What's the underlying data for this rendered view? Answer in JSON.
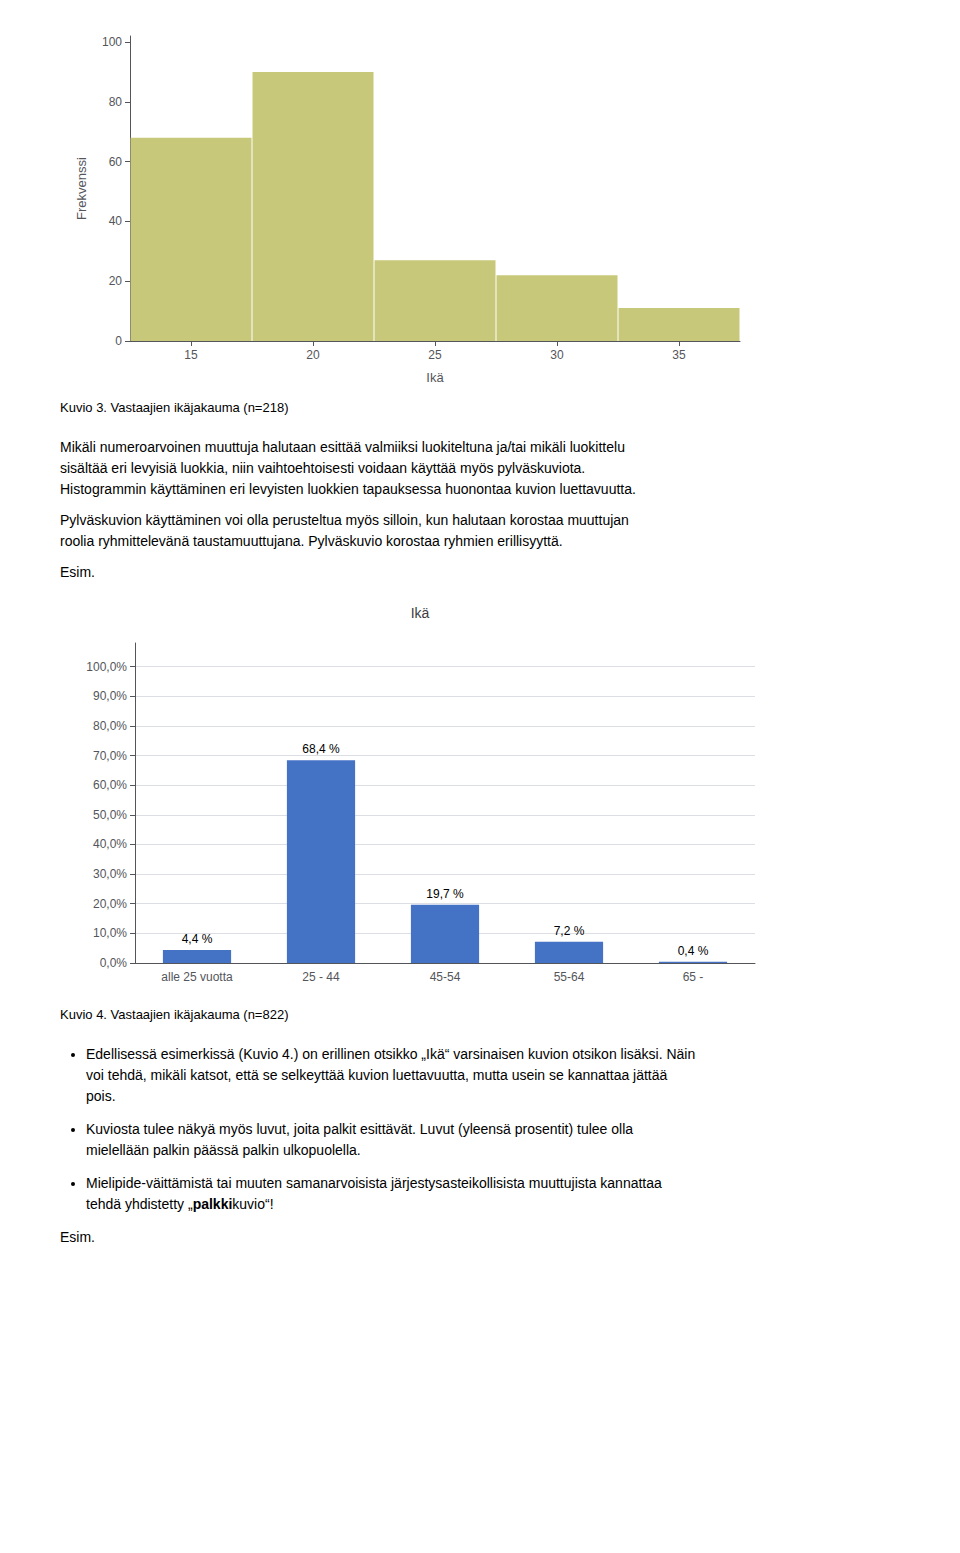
{
  "chart_data": [
    {
      "type": "histogram",
      "xlabel": "Ikä",
      "ylabel": "Frekvenssi",
      "bins": [
        12.5,
        17.5,
        22.5,
        27.5,
        32.5,
        37.5
      ],
      "values": [
        68,
        90,
        27,
        22,
        11
      ],
      "color": "#c8c87a",
      "xlim": [
        12.5,
        37.5
      ],
      "ylim": [
        0,
        102
      ],
      "xticks": [
        15,
        20,
        25,
        30,
        35
      ],
      "yticks": [
        0,
        20,
        40,
        60,
        80,
        100
      ],
      "grid": false,
      "caption": "Kuvio 3. Vastaajien ikäjakauma (n=218)",
      "text_after": {
        "paragraphs": [
          [
            "Mikäli numeroarvoinen muuttuja halutaan esittää valmiiksi luokiteltuna ja/tai mikäli luokittelu",
            "sisältää eri levyisiä luokkia, niin vaihtoehtoisesti voidaan käyttää myös pylväskuviota.",
            "Histogrammin käyttäminen eri levyisten luokkien tapauksessa huonontaa kuvion luettavuutta."
          ],
          [
            "Pylväskuvion käyttäminen voi olla perusteltua myös silloin, kun halutaan korostaa muuttujan",
            "roolia ryhmittelevänä taustamuuttujana. Pylväskuvio korostaa ryhmien erillisyyttä."
          ],
          [
            "Esim."
          ]
        ]
      }
    },
    {
      "type": "bar",
      "title": "Ikä",
      "categories": [
        "alle 25 vuotta",
        "25 - 44",
        "45-54",
        "55-64",
        "65 -"
      ],
      "values": [
        4.4,
        68.4,
        19.7,
        7.2,
        0.4
      ],
      "value_labels": [
        "4,4 %",
        "68,4 %",
        "19,7 %",
        "7,2 %",
        "0,4 %"
      ],
      "data_labels": true,
      "color": "#4472c4",
      "ylim": [
        0,
        108
      ],
      "yticks": [
        {
          "value": 0,
          "label": "0,0%"
        },
        {
          "value": 10,
          "label": "10,0%"
        },
        {
          "value": 20,
          "label": "20,0%"
        },
        {
          "value": 30,
          "label": "30,0%"
        },
        {
          "value": 40,
          "label": "40,0%"
        },
        {
          "value": 50,
          "label": "50,0%"
        },
        {
          "value": 60,
          "label": "60,0%"
        },
        {
          "value": 70,
          "label": "70,0%"
        },
        {
          "value": 80,
          "label": "80,0%"
        },
        {
          "value": 90,
          "label": "90,0%"
        },
        {
          "value": 100,
          "label": "100,0%"
        }
      ],
      "grid": true,
      "caption": "Kuvio 4. Vastaajien ikäjakauma (n=822)",
      "text_after": {
        "bullets": [
          [
            "Edellisessä esimerkissä (Kuvio 4.) on erillinen otsikko „Ikä“ varsinaisen kuvion otsikon lisäksi. Näin",
            "voi tehdä, mikäli katsot, että se selkeyttää kuvion luettavuutta, mutta usein se kannattaa jättää",
            "pois."
          ],
          [
            "Kuviosta tulee näkyä myös luvut, joita palkit esittävät. Luvut (yleensä prosentit) tulee olla",
            "mielellään palkin päässä palkin ulkopuolella."
          ],
          [
            "Mielipide-väittämistä tai muuten samanarvoisista järjestysasteikollisista muuttujista kannattaa",
            [
              {
                "text": "tehdä yhdistetty „"
              },
              {
                "text": "palkki",
                "bold": true
              },
              {
                "text": "kuvio“!"
              }
            ]
          ]
        ],
        "paragraphs": [
          [
            "Esim."
          ]
        ]
      }
    }
  ]
}
